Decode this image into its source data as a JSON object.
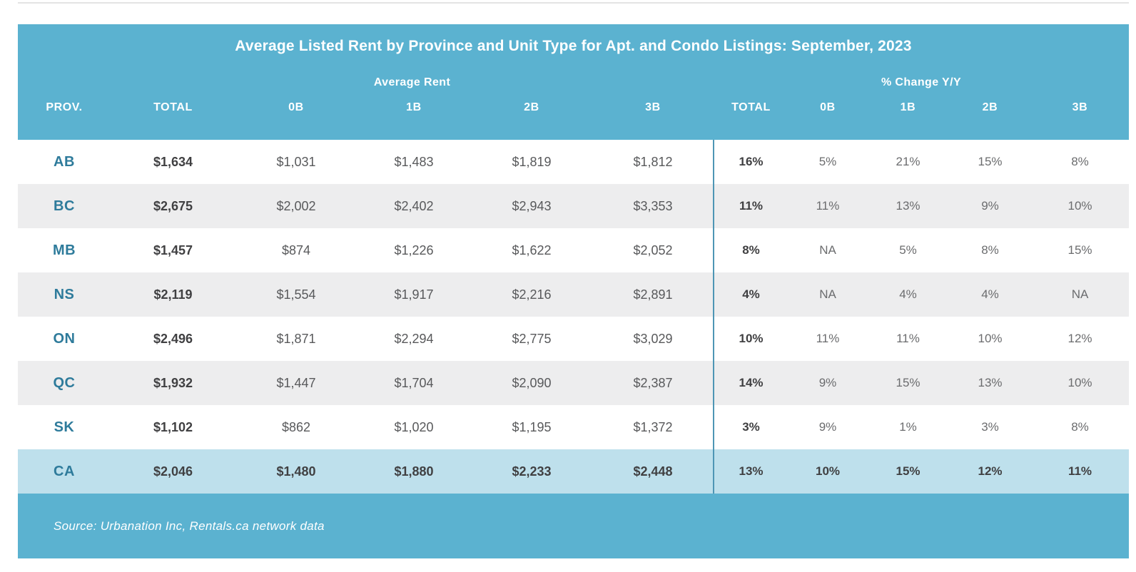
{
  "chart_data": {
    "type": "table",
    "title": "Average Listed Rent by Province and Unit Type for Apt. and Condo Listings: September, 2023",
    "group_headers": [
      "Average Rent",
      "% Change Y/Y"
    ],
    "columns": [
      "PROV.",
      "TOTAL",
      "0B",
      "1B",
      "2B",
      "3B",
      "TOTAL",
      "0B",
      "1B",
      "2B",
      "3B"
    ],
    "rows": [
      {
        "prov": "AB",
        "values": [
          "$1,634",
          "$1,031",
          "$1,483",
          "$1,819",
          "$1,812",
          "16%",
          "5%",
          "21%",
          "15%",
          "8%"
        ],
        "highlight": false
      },
      {
        "prov": "BC",
        "values": [
          "$2,675",
          "$2,002",
          "$2,402",
          "$2,943",
          "$3,353",
          "11%",
          "11%",
          "13%",
          "9%",
          "10%"
        ],
        "highlight": false
      },
      {
        "prov": "MB",
        "values": [
          "$1,457",
          "$874",
          "$1,226",
          "$1,622",
          "$2,052",
          "8%",
          "NA",
          "5%",
          "8%",
          "15%"
        ],
        "highlight": false
      },
      {
        "prov": "NS",
        "values": [
          "$2,119",
          "$1,554",
          "$1,917",
          "$2,216",
          "$2,891",
          "4%",
          "NA",
          "4%",
          "4%",
          "NA"
        ],
        "highlight": false
      },
      {
        "prov": "ON",
        "values": [
          "$2,496",
          "$1,871",
          "$2,294",
          "$2,775",
          "$3,029",
          "10%",
          "11%",
          "11%",
          "10%",
          "12%"
        ],
        "highlight": false
      },
      {
        "prov": "QC",
        "values": [
          "$1,932",
          "$1,447",
          "$1,704",
          "$2,090",
          "$2,387",
          "14%",
          "9%",
          "15%",
          "13%",
          "10%"
        ],
        "highlight": false
      },
      {
        "prov": "SK",
        "values": [
          "$1,102",
          "$862",
          "$1,020",
          "$1,195",
          "$1,372",
          "3%",
          "9%",
          "1%",
          "3%",
          "8%"
        ],
        "highlight": false
      },
      {
        "prov": "CA",
        "values": [
          "$2,046",
          "$1,480",
          "$1,880",
          "$2,233",
          "$2,448",
          "13%",
          "10%",
          "15%",
          "12%",
          "11%"
        ],
        "highlight": true
      }
    ],
    "source": "Source: Urbanation Inc, Rentals.ca network data",
    "layout": {
      "legend": "none",
      "grid": "row-striping",
      "group_divider_between_columns": [
        5,
        6
      ]
    }
  },
  "colors": {
    "header_bg": "#5BB2D0",
    "header_text": "#FFFFFF",
    "row_alt_bg": "#EDEDEE",
    "highlight_row_bg": "#BEE0EC",
    "province_text": "#2E7B9B",
    "bold_value_text": "#404042",
    "value_text": "#58595B",
    "pct_text": "#6B6C6E",
    "divider": "#4E96B5",
    "top_rule": "#E3E4E4"
  }
}
